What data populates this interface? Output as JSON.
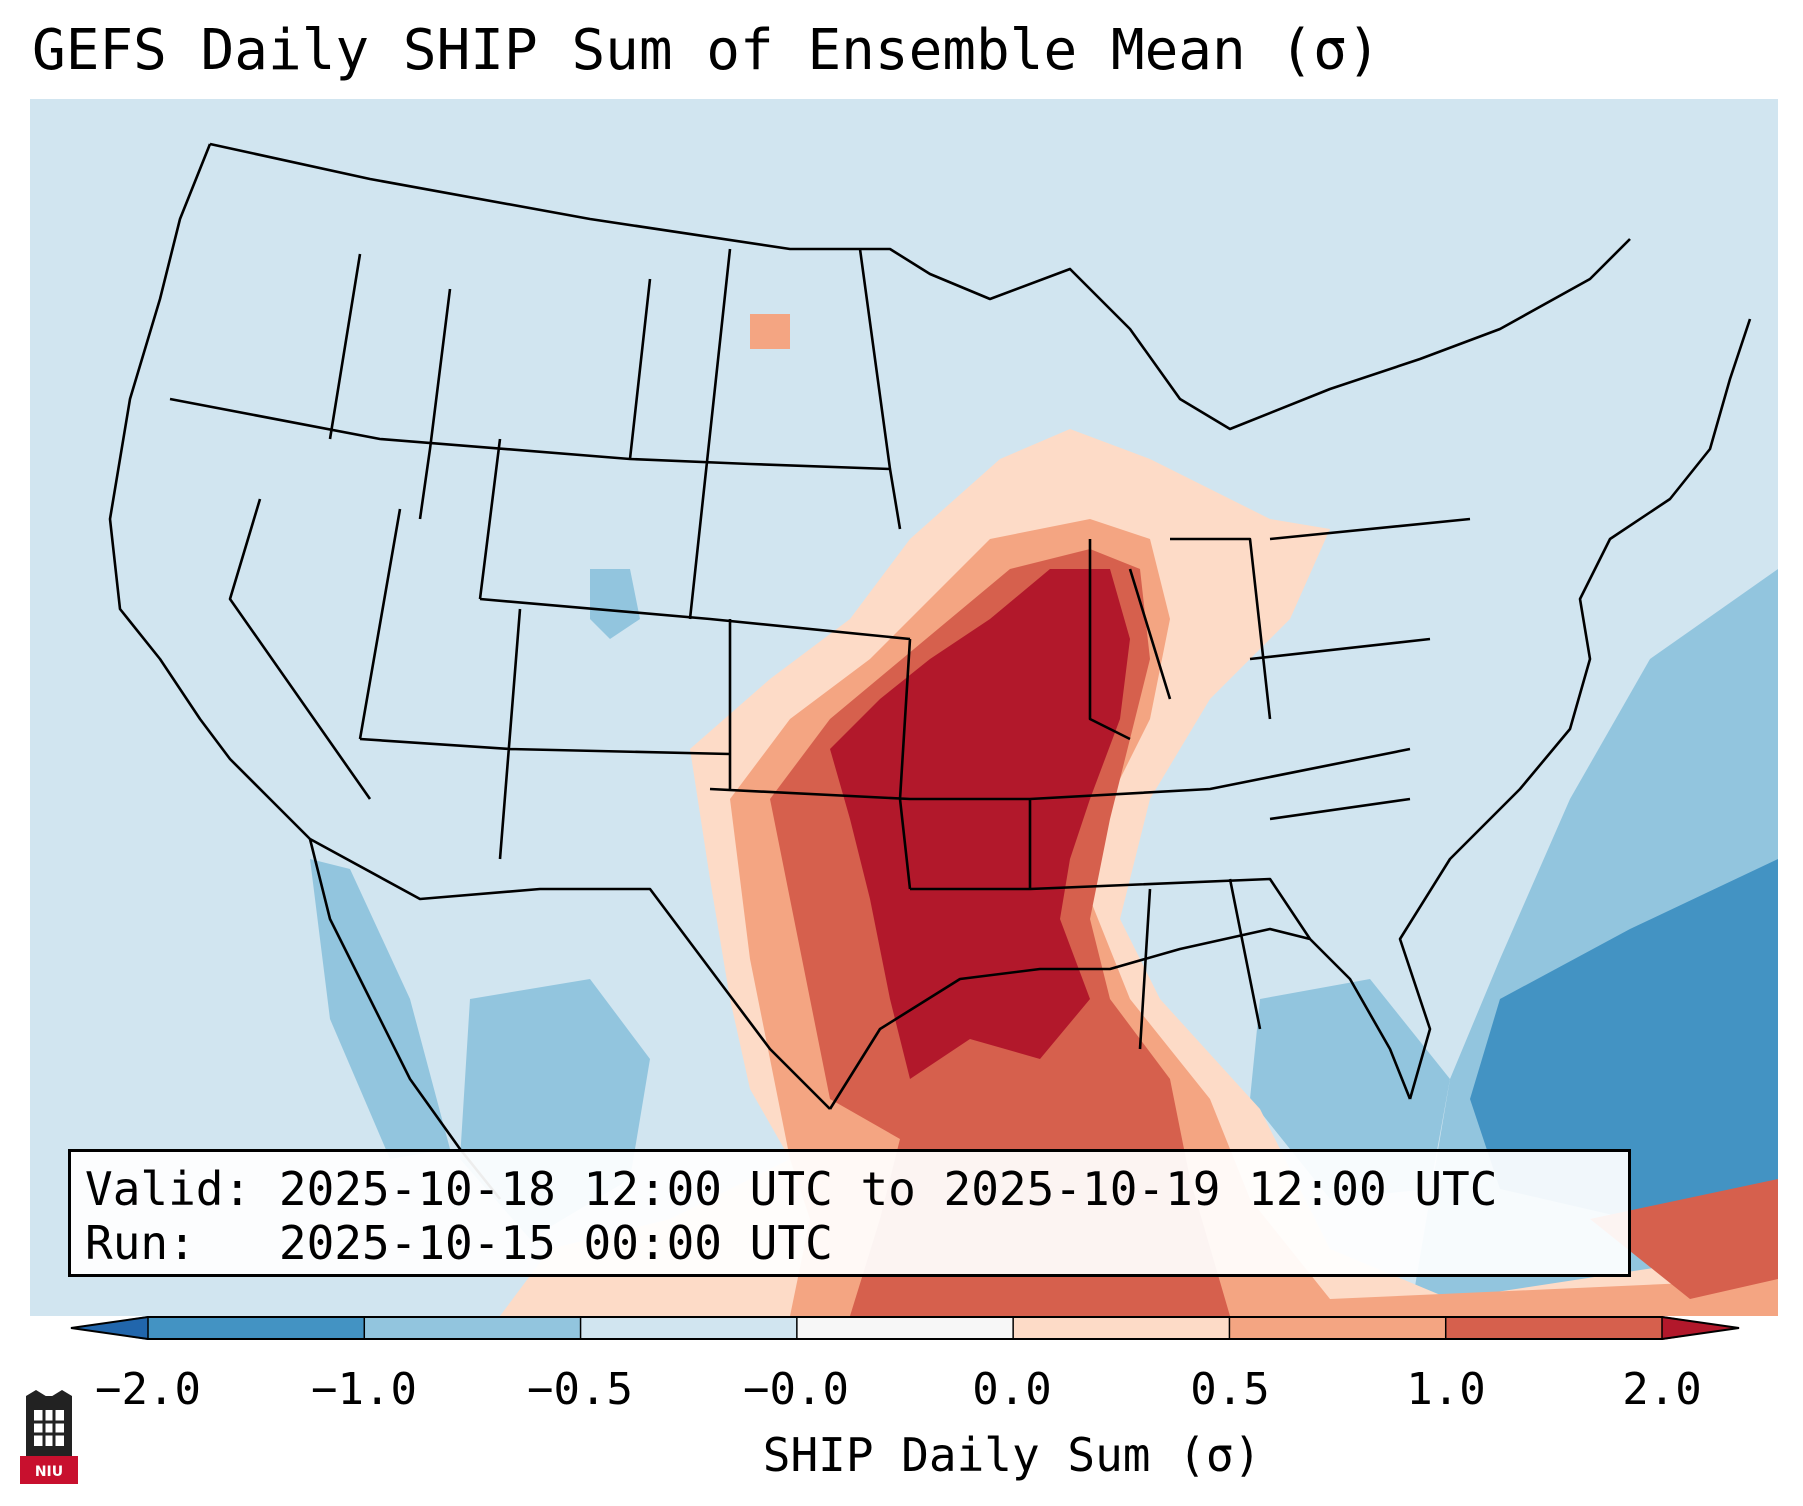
{
  "title": "GEFS Daily SHIP Sum of Ensemble Mean (σ)",
  "info": {
    "valid_label": "Valid:",
    "valid_value": "2025-10-18 12:00 UTC to 2025-10-19 12:00 UTC",
    "run_label": "Run:",
    "run_value": "2025-10-15 00:00 UTC"
  },
  "colorbar": {
    "label": "SHIP Daily Sum (σ)",
    "ticks": [
      "−2.0",
      "−1.0",
      "−0.5",
      "−0.0",
      "0.0",
      "0.5",
      "1.0",
      "2.0"
    ],
    "bins": [
      {
        "range": "< -2.0",
        "color": "#2166ac"
      },
      {
        "range": "-2.0 to -1.0",
        "color": "#4393c3"
      },
      {
        "range": "-1.0 to -0.5",
        "color": "#92c5de"
      },
      {
        "range": "-0.5 to -0.0",
        "color": "#d1e5f0"
      },
      {
        "range": "-0.0 to 0.0",
        "color": "#f7f7f7"
      },
      {
        "range": "0.0 to 0.5",
        "color": "#fddbc7"
      },
      {
        "range": "0.5 to 1.0",
        "color": "#f4a582"
      },
      {
        "range": "1.0 to 2.0",
        "color": "#d6604d"
      },
      {
        "range": "> 2.0",
        "color": "#b2182b"
      }
    ],
    "extend": "both"
  },
  "map": {
    "projection": "Lambert Conformal, CONUS",
    "background_color": "#d1e5f0",
    "features": [
      "US state borders",
      "Canada/Mexico borders",
      "coastlines"
    ],
    "max_anomaly_region": "Central and southern Plains to Mississippi Valley and western Gulf Coast",
    "negative_anomaly_region": "Western Atlantic off Southeast coast"
  },
  "logo": {
    "text": "NIU"
  }
}
